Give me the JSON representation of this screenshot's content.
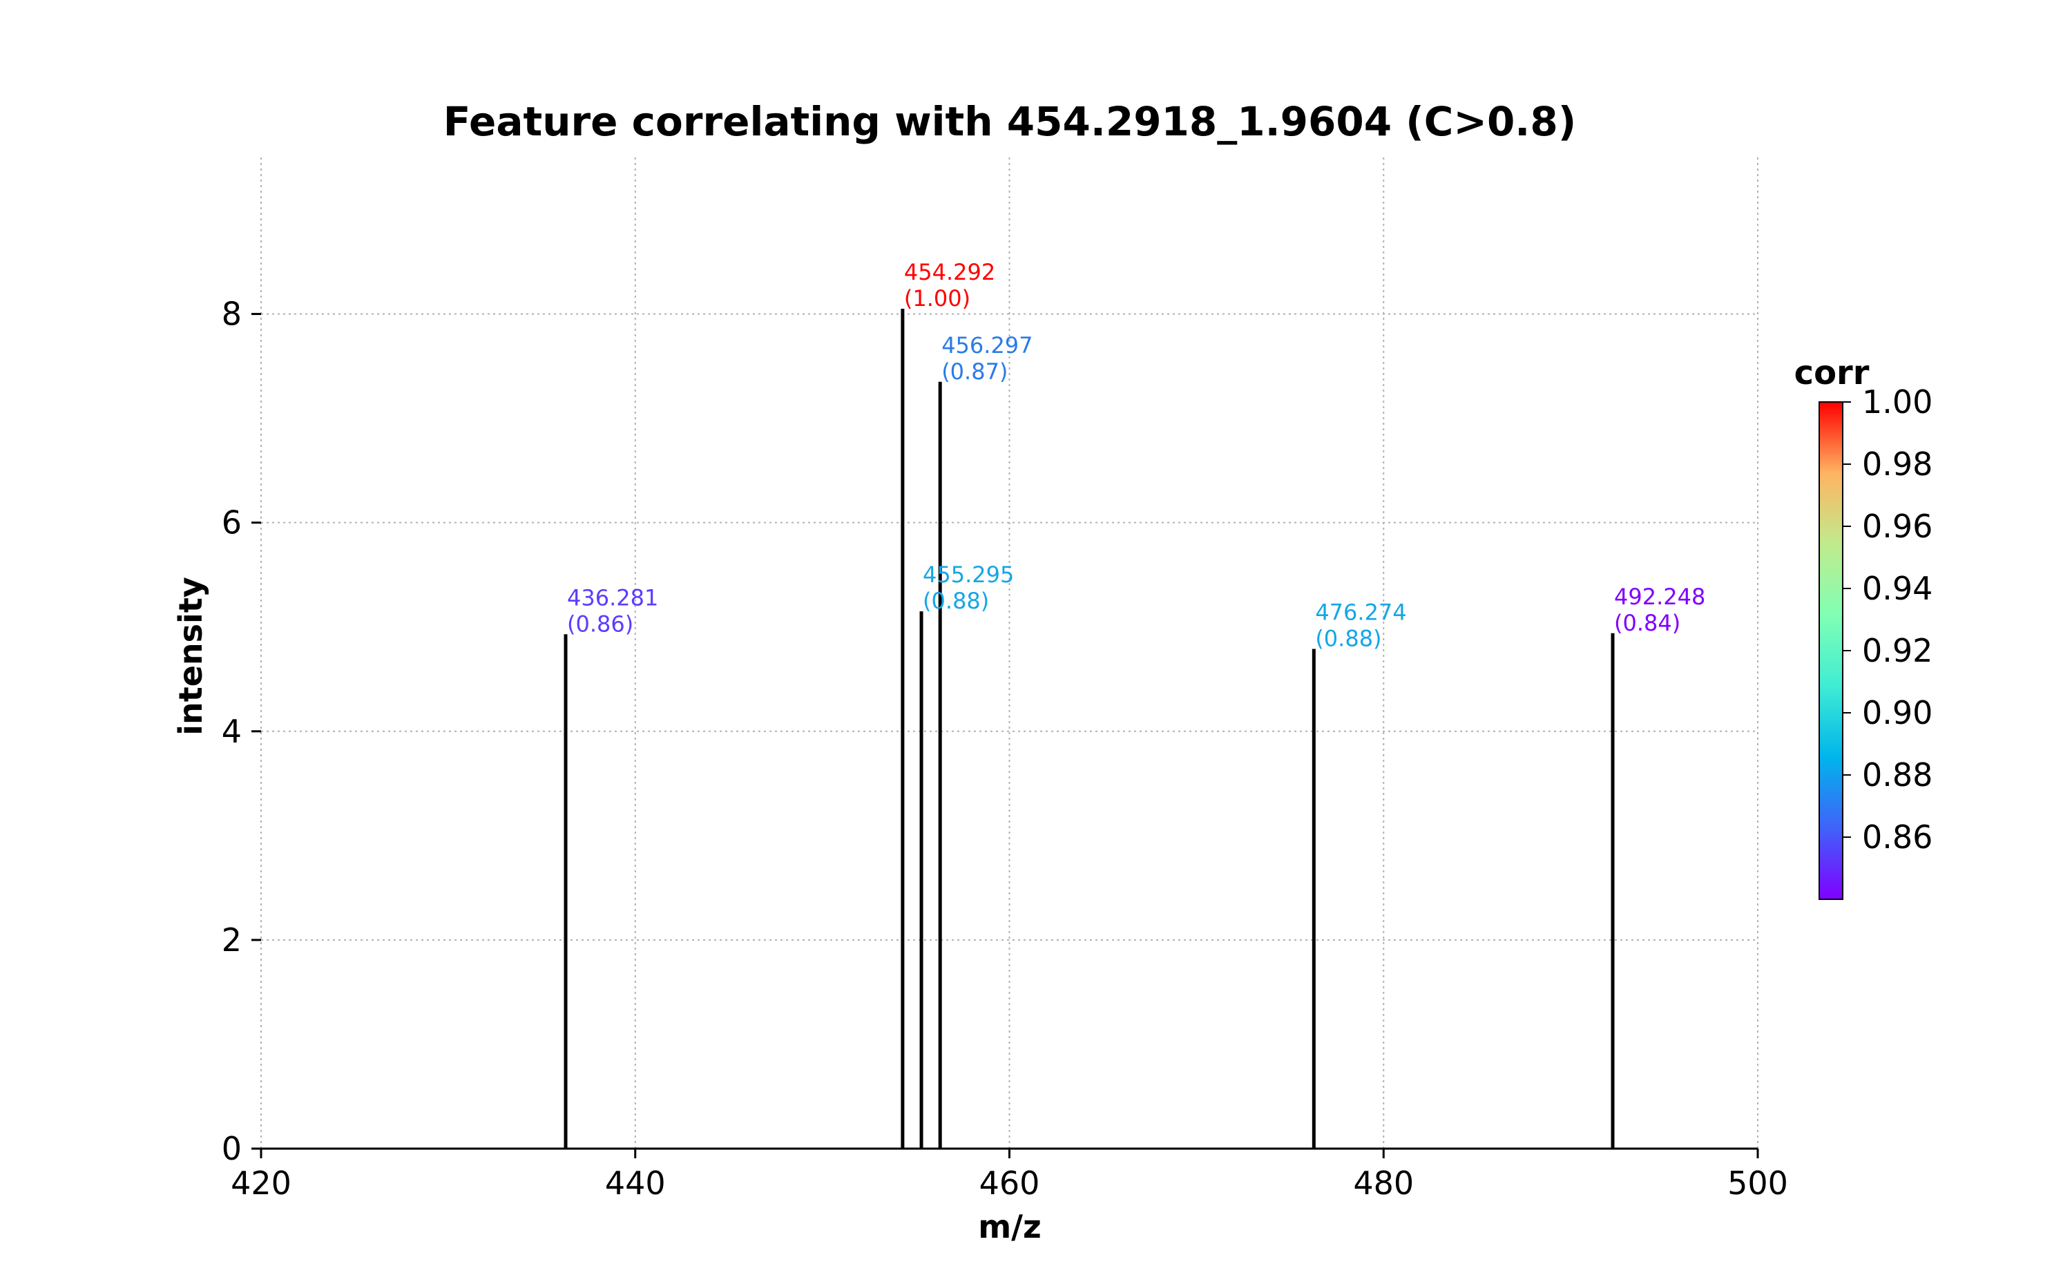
{
  "chart_data": {
    "type": "bar",
    "subtype": "stem-spectrum",
    "title": "Feature correlating with 454.2918_1.9604 (C>0.8)",
    "xlabel": "m/z",
    "ylabel": "intensity",
    "xlim": [
      420,
      500
    ],
    "ylim": [
      0,
      9.5
    ],
    "xticks": [
      420,
      440,
      460,
      480,
      500
    ],
    "yticks": [
      0,
      2,
      4,
      6,
      8
    ],
    "grid": true,
    "colorbar": {
      "label": "corr",
      "colormap": "rainbow",
      "range": [
        0.84,
        1.0
      ],
      "ticks": [
        "1.00",
        "0.98",
        "0.96",
        "0.94",
        "0.92",
        "0.90",
        "0.88",
        "0.86"
      ]
    },
    "peaks": [
      {
        "mz": 436.281,
        "intensity": 4.93,
        "label": "436.281",
        "corr_label": "(0.86)",
        "color": "#5a3cff"
      },
      {
        "mz": 454.292,
        "intensity": 8.05,
        "label": "454.292",
        "corr_label": "(1.00)",
        "color": "#ff0000"
      },
      {
        "mz": 455.295,
        "intensity": 5.15,
        "label": "455.295",
        "corr_label": "(0.88)",
        "color": "#14a6e6"
      },
      {
        "mz": 456.297,
        "intensity": 7.35,
        "label": "456.297",
        "corr_label": "(0.87)",
        "color": "#2a7be8"
      },
      {
        "mz": 476.274,
        "intensity": 4.79,
        "label": "476.274",
        "corr_label": "(0.88)",
        "color": "#14a6e6"
      },
      {
        "mz": 492.248,
        "intensity": 4.94,
        "label": "492.248",
        "corr_label": "(0.84)",
        "color": "#8000ff"
      }
    ]
  }
}
